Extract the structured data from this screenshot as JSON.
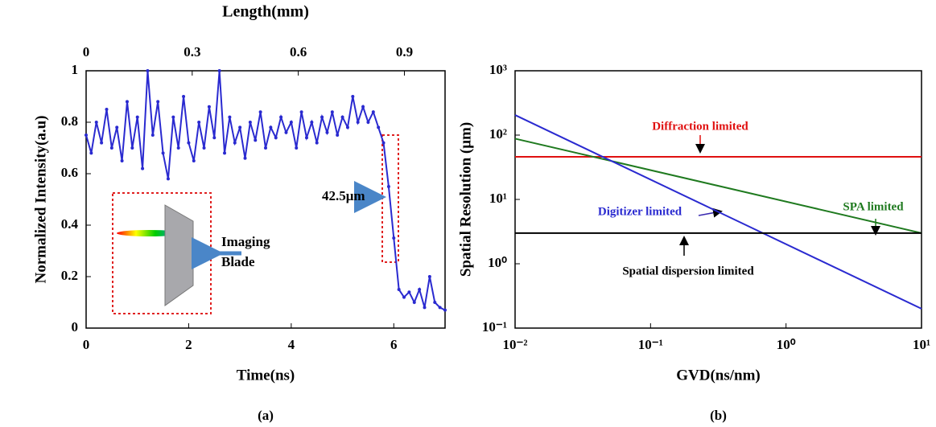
{
  "chart_data": [
    {
      "type": "line",
      "xlabel": "Time(ns)",
      "ylabel": "Normalized Intensity(a.u)",
      "x2label": "Length(mm)",
      "xlim": [
        0,
        7
      ],
      "xticks": [
        0,
        2,
        4,
        6
      ],
      "x2lim": [
        0,
        1.015
      ],
      "x2ticks": [
        0,
        0.3,
        0.6,
        0.9
      ],
      "ylim": [
        0,
        1
      ],
      "yticks": [
        0,
        0.2,
        0.4,
        0.6,
        0.8,
        1
      ],
      "series": [
        {
          "color": "#2a2ad0",
          "x": [
            0,
            0.1,
            0.2,
            0.3,
            0.4,
            0.5,
            0.6,
            0.7,
            0.8,
            0.9,
            1,
            1.1,
            1.2,
            1.3,
            1.4,
            1.5,
            1.6,
            1.7,
            1.8,
            1.9,
            2,
            2.1,
            2.2,
            2.3,
            2.4,
            2.5,
            2.6,
            2.7,
            2.8,
            2.9,
            3,
            3.1,
            3.2,
            3.3,
            3.4,
            3.5,
            3.6,
            3.7,
            3.8,
            3.9,
            4,
            4.1,
            4.2,
            4.3,
            4.4,
            4.5,
            4.6,
            4.7,
            4.8,
            4.9,
            5,
            5.1,
            5.2,
            5.3,
            5.4,
            5.5,
            5.6,
            5.7,
            5.8,
            5.9,
            6,
            6.1,
            6.2,
            6.3,
            6.4,
            6.5,
            6.6,
            6.7,
            6.8,
            6.9,
            7
          ],
          "values": [
            0.75,
            0.68,
            0.8,
            0.72,
            0.85,
            0.7,
            0.78,
            0.65,
            0.88,
            0.7,
            0.82,
            0.62,
            1,
            0.75,
            0.88,
            0.68,
            0.58,
            0.82,
            0.7,
            0.9,
            0.72,
            0.65,
            0.8,
            0.7,
            0.86,
            0.74,
            1,
            0.68,
            0.82,
            0.72,
            0.78,
            0.66,
            0.8,
            0.73,
            0.84,
            0.7,
            0.78,
            0.74,
            0.82,
            0.76,
            0.8,
            0.7,
            0.84,
            0.74,
            0.8,
            0.72,
            0.82,
            0.76,
            0.84,
            0.75,
            0.82,
            0.78,
            0.9,
            0.8,
            0.86,
            0.8,
            0.84,
            0.78,
            0.72,
            0.55,
            0.35,
            0.15,
            0.12,
            0.14,
            0.1,
            0.15,
            0.08,
            0.2,
            0.1,
            0.08,
            0.07
          ]
        }
      ],
      "annotations": [
        "42.5μm",
        "Imaging",
        "Blade"
      ],
      "caption": "(a)"
    },
    {
      "type": "line",
      "xscale": "log",
      "yscale": "log",
      "xlabel": "GVD(ns/nm)",
      "ylabel": "Spatial Resolution (μm)",
      "xlim": [
        0.01,
        10
      ],
      "xticks": [
        {
          "value": 0.01,
          "label": "10⁻²"
        },
        {
          "value": 0.1,
          "label": "10⁻¹"
        },
        {
          "value": 1,
          "label": "10⁰"
        },
        {
          "value": 10,
          "label": "10¹"
        }
      ],
      "ylim": [
        0.1,
        1000
      ],
      "yticks": [
        {
          "value": 0.1,
          "label": "10⁻¹"
        },
        {
          "value": 1,
          "label": "10⁰"
        },
        {
          "value": 10,
          "label": "10¹"
        },
        {
          "value": 100,
          "label": "10²"
        },
        {
          "value": 1000,
          "label": "10³"
        }
      ],
      "series": [
        {
          "name": "Diffraction limited",
          "color": "#e01010",
          "x": [
            0.01,
            10
          ],
          "values": [
            46,
            46
          ]
        },
        {
          "name": "SPA limited",
          "color": "#1f7a1f",
          "x": [
            0.01,
            10
          ],
          "values": [
            88,
            3
          ]
        },
        {
          "name": "Digitizer limited",
          "color": "#2a2ad0",
          "x": [
            0.01,
            10
          ],
          "values": [
            205,
            0.2
          ]
        },
        {
          "name": "Spatial dispersion limited",
          "color": "#000000",
          "x": [
            0.01,
            10
          ],
          "values": [
            3,
            3
          ]
        }
      ],
      "caption": "(b)"
    }
  ]
}
